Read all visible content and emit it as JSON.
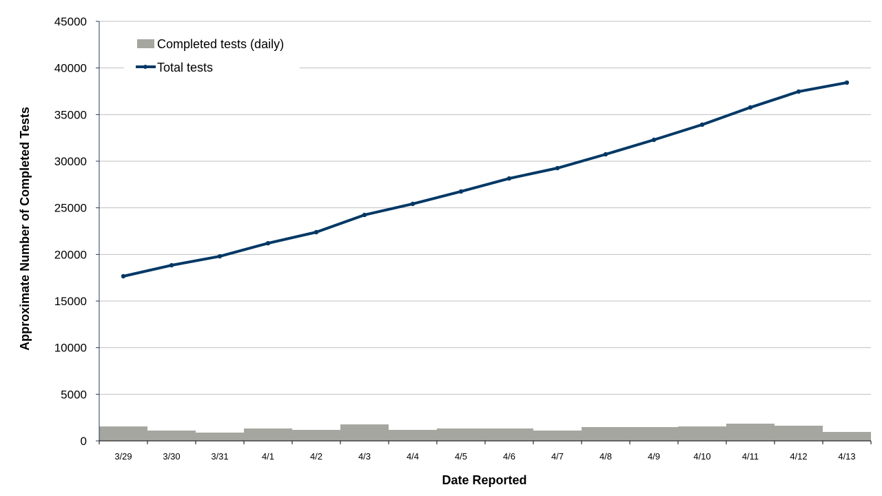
{
  "chart_data": {
    "type": "bar+line",
    "title": "",
    "xlabel": "Date Reported",
    "ylabel": "Approximate Number of Completed Tests",
    "ylim": [
      0,
      45000
    ],
    "yticks": [
      0,
      5000,
      10000,
      15000,
      20000,
      25000,
      30000,
      35000,
      40000,
      45000
    ],
    "grid": true,
    "legend_position": "top-left",
    "categories": [
      "3/29",
      "3/30",
      "3/31",
      "4/1",
      "4/2",
      "4/3",
      "4/4",
      "4/5",
      "4/6",
      "4/7",
      "4/8",
      "4/9",
      "4/10",
      "4/11",
      "4/12",
      "4/13"
    ],
    "series": [
      {
        "name": "Completed tests (daily)",
        "type": "bar",
        "color": "#a6a6a0",
        "values": [
          1550,
          1110,
          890,
          1330,
          1180,
          1770,
          1180,
          1330,
          1330,
          1110,
          1480,
          1480,
          1550,
          1850,
          1630,
          960
        ]
      },
      {
        "name": "Total tests",
        "type": "line",
        "color": "#003865",
        "values": [
          17660,
          18840,
          19800,
          21200,
          22390,
          24240,
          25420,
          26750,
          28150,
          29260,
          30740,
          32290,
          33920,
          35770,
          37470,
          38430
        ]
      }
    ]
  },
  "legend": {
    "bar_label": "Completed tests (daily)",
    "line_label": "Total tests"
  },
  "axes": {
    "x_title": "Date Reported",
    "y_title": "Approximate Number of Completed Tests"
  }
}
